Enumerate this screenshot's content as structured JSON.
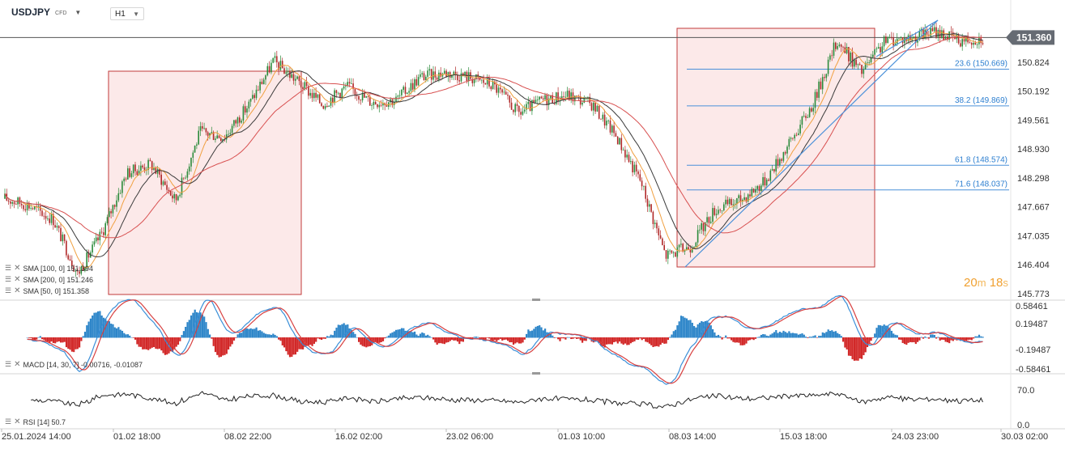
{
  "header": {
    "symbol": "USDJPY",
    "symbol_type": "CFD",
    "timeframe": "H1"
  },
  "price_axis": {
    "ticks": [
      "151.455",
      "150.824",
      "150.192",
      "149.561",
      "148.930",
      "148.298",
      "147.667",
      "147.035",
      "146.404",
      "145.773"
    ],
    "current_price": "151.360"
  },
  "macd_axis": {
    "ticks": [
      "0.58461",
      "0.19487",
      "-0.19487",
      "-0.58461"
    ]
  },
  "rsi_axis": {
    "ticks": [
      "70.0",
      "0.0"
    ]
  },
  "time_axis": {
    "labels": [
      "25.01.2024  14:00",
      "01.02  18:00",
      "08.02  22:00",
      "16.02  02:00",
      "23.02  06:00",
      "01.03  10:00",
      "08.03  14:00",
      "15.03  18:00",
      "24.03  23:00",
      "30.03  02:00"
    ]
  },
  "indicators": {
    "sma100": "SMA [100, 0]  151.394",
    "sma200": "SMA [200, 0]  151.246",
    "sma50": "SMA [50, 0]  151.358",
    "macd": "MACD [14, 30, 7]  -0.00716,  -0.01087",
    "rsi": "RSI [14]  50.7"
  },
  "timer": {
    "minutes": "20",
    "minutes_unit": "m",
    "seconds": "18",
    "seconds_unit": "s"
  },
  "fib_levels": [
    {
      "label": "23.6 (150.669)",
      "value": 150.669
    },
    {
      "label": "38.2 (149.869)",
      "value": 149.869
    },
    {
      "label": "61.8 (148.574)",
      "value": 148.574
    },
    {
      "label": "71.6 (148.037)",
      "value": 148.037
    }
  ],
  "chart_data": {
    "type": "candlestick",
    "symbol": "USDJPY",
    "interval": "H1",
    "x": [
      "25.01.2024 14:00",
      "01.02 18:00",
      "08.02 22:00",
      "16.02 02:00",
      "23.02 06:00",
      "01.03 10:00",
      "08.03 14:00",
      "15.03 18:00",
      "24.03 23:00",
      "30.03 02:00"
    ],
    "ylim": [
      145.773,
      151.6
    ],
    "price_path": [
      [
        "25.01.2024 14:00",
        147.85
      ],
      [
        "29.01",
        147.7
      ],
      [
        "31.01",
        147.4
      ],
      [
        "01.02 18:00",
        146.2
      ],
      [
        "02.02",
        147.1
      ],
      [
        "05.02",
        148.4
      ],
      [
        "06.02",
        148.6
      ],
      [
        "07.02",
        147.8
      ],
      [
        "08.02 22:00",
        149.3
      ],
      [
        "12.02",
        149.2
      ],
      [
        "13.02",
        149.9
      ],
      [
        "14.02",
        150.85
      ],
      [
        "15.02",
        150.4
      ],
      [
        "16.02 02:00",
        149.9
      ],
      [
        "19.02",
        150.3
      ],
      [
        "20.02",
        149.95
      ],
      [
        "21.02",
        150.0
      ],
      [
        "23.02 06:00",
        150.5
      ],
      [
        "26.02",
        150.6
      ],
      [
        "27.02",
        150.5
      ],
      [
        "28.02",
        150.3
      ],
      [
        "29.02",
        149.7
      ],
      [
        "01.03 10:00",
        150.0
      ],
      [
        "04.03",
        150.1
      ],
      [
        "05.03",
        149.9
      ],
      [
        "06.03",
        149.2
      ],
      [
        "07.03",
        148.2
      ],
      [
        "08.03 14:00",
        146.6
      ],
      [
        "11.03",
        146.8
      ],
      [
        "12.03",
        147.6
      ],
      [
        "13.03",
        147.8
      ],
      [
        "14.03",
        148.2
      ],
      [
        "15.03 18:00",
        149.0
      ],
      [
        "18.03",
        149.9
      ],
      [
        "19.03",
        151.3
      ],
      [
        "20.03",
        150.6
      ],
      [
        "21.03",
        151.3
      ],
      [
        "24.03 23:00",
        151.35
      ],
      [
        "26.03",
        151.5
      ],
      [
        "27.03",
        151.3
      ],
      [
        "28.03",
        151.36
      ]
    ],
    "current_price": 151.36,
    "series": [
      {
        "name": "SMA [100, 0]",
        "last": 151.394
      },
      {
        "name": "SMA [200, 0]",
        "last": 151.246
      },
      {
        "name": "SMA [50, 0]",
        "last": 151.358
      }
    ],
    "fibonacci": [
      {
        "level": 23.6,
        "price": 150.669
      },
      {
        "level": 38.2,
        "price": 149.869
      },
      {
        "level": 61.8,
        "price": 148.574
      },
      {
        "level": 71.6,
        "price": 148.037
      }
    ],
    "subcharts": [
      {
        "name": "MACD [14, 30, 7]",
        "values": [
          -0.00716,
          -0.01087
        ],
        "ylim": [
          -0.58461,
          0.58461
        ]
      },
      {
        "name": "RSI [14]",
        "last": 50.7,
        "ylim": [
          0,
          100
        ]
      }
    ]
  }
}
